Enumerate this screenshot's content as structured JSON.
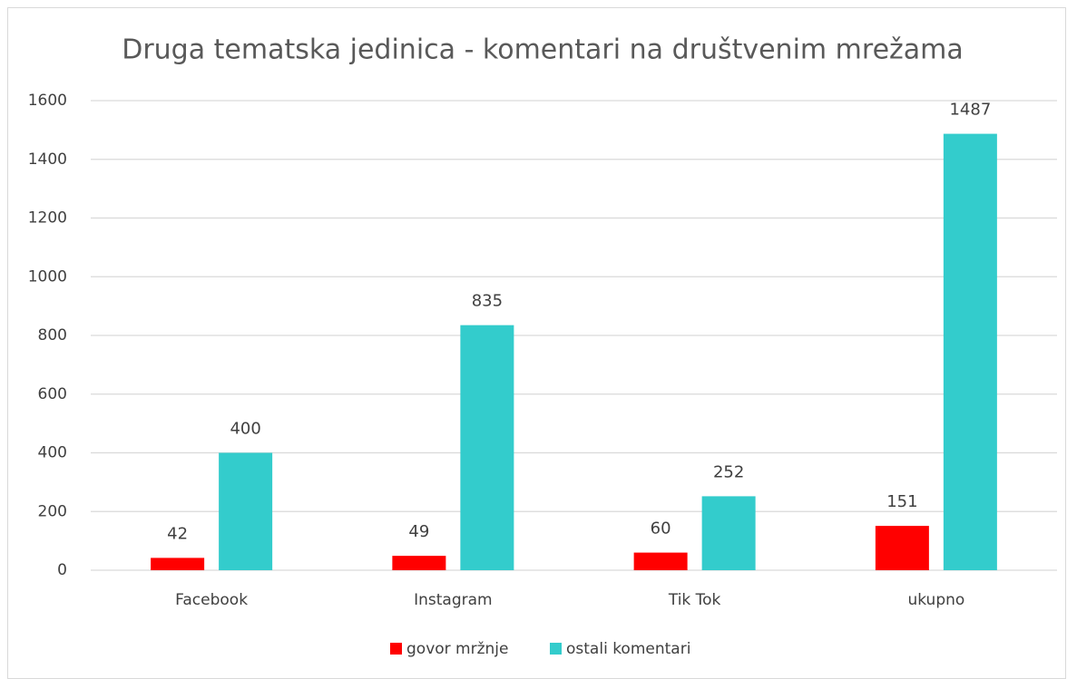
{
  "chart_data": {
    "type": "bar",
    "title": "Druga tematska jedinica - komentari na društvenim mrežama",
    "categories": [
      "Facebook",
      "Instagram",
      "Tik Tok",
      "ukupno"
    ],
    "series": [
      {
        "name": "govor mržnje",
        "color": "#ff0000",
        "values": [
          42,
          49,
          60,
          151
        ]
      },
      {
        "name": "ostali komentari",
        "color": "#33cccc",
        "values": [
          400,
          835,
          252,
          1487
        ]
      }
    ],
    "ylim": [
      0,
      1600
    ],
    "yticks": [
      0,
      200,
      400,
      600,
      800,
      1000,
      1200,
      1400,
      1600
    ],
    "grid": true,
    "legend": "bottom"
  }
}
